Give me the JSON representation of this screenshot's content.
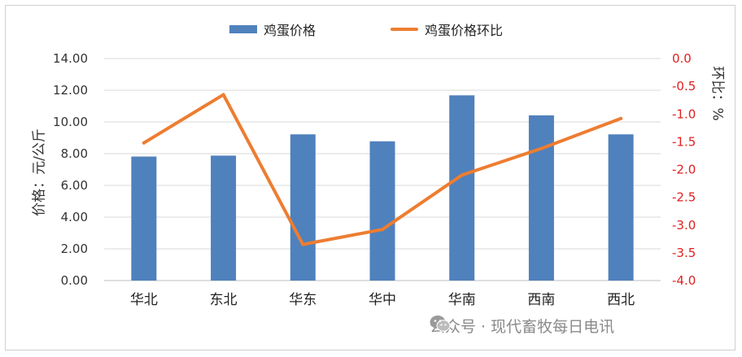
{
  "chart_data": {
    "type": "bar",
    "categories": [
      "华北",
      "东北",
      "华东",
      "华中",
      "华南",
      "西南",
      "西北"
    ],
    "series": [
      {
        "name": "鸡蛋价格",
        "type": "bar",
        "axis": "left",
        "color": "#4f81bd",
        "values": [
          7.82,
          7.88,
          9.22,
          8.78,
          11.68,
          10.42,
          9.22
        ]
      },
      {
        "name": "鸡蛋价格环比",
        "type": "line",
        "axis": "right",
        "color": "#ed7d31",
        "values": [
          -1.52,
          -0.65,
          -3.35,
          -3.08,
          -2.1,
          -1.62,
          -1.08
        ]
      }
    ],
    "ylabel": "价格：元/公斤",
    "y2label": "环比：%",
    "ylim": [
      0,
      14
    ],
    "y2lim": [
      -4,
      0
    ],
    "yticks": [
      "0.00",
      "2.00",
      "4.00",
      "6.00",
      "8.00",
      "10.00",
      "12.00",
      "14.00"
    ],
    "y2ticks": [
      "0.0",
      "-0.5",
      "-1.0",
      "-1.5",
      "-2.0",
      "-2.5",
      "-3.0",
      "-3.5",
      "-4.0"
    ],
    "grid": true,
    "legend_position": "top-center",
    "y2tick_color": "#e02020"
  },
  "watermark": {
    "text": "公众号 · 现代畜牧每日电讯",
    "icon": "wechat-icon"
  }
}
